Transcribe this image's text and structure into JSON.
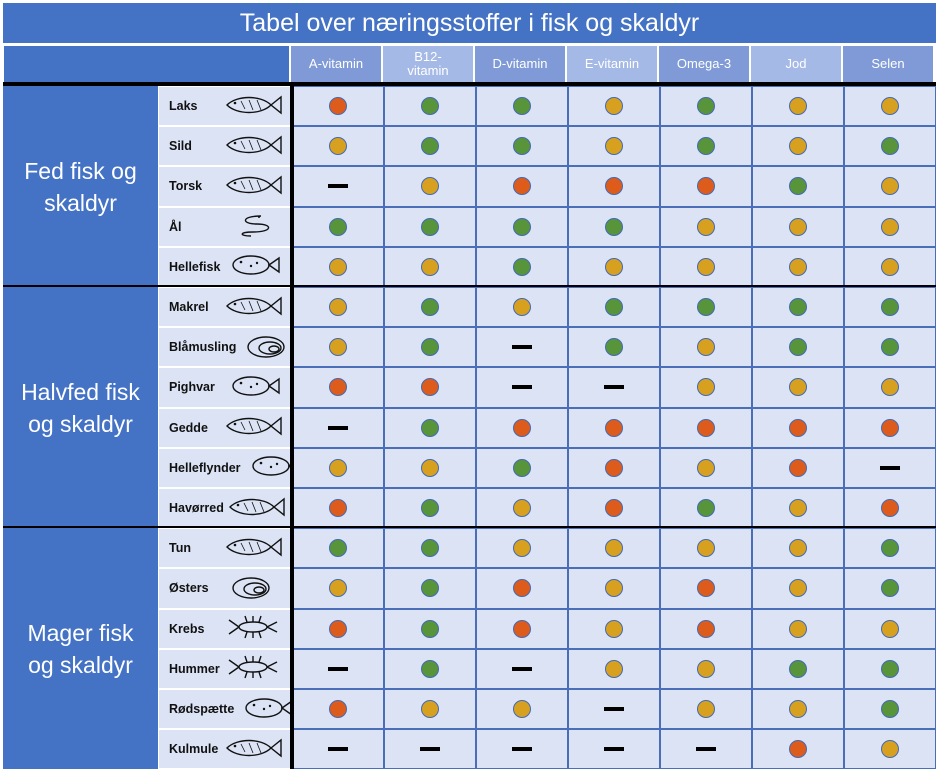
{
  "title": "Tabel over næringsstoffer i fisk og skaldyr",
  "columns": [
    "A-vitamin",
    "B12-\nvitamin",
    "D-vitamin",
    "E-vitamin",
    "Omega-3",
    "Jod",
    "Selen"
  ],
  "colors": {
    "green": "#57943a",
    "yellow": "#d7a11f",
    "orange": "#de5c1b",
    "header": "#4472c4"
  },
  "groups": [
    {
      "label": "Fed fisk og\nskaldyr",
      "rows": [
        {
          "name": "Laks",
          "icon": "salmon-icon",
          "values": [
            "orange",
            "green",
            "green",
            "yellow",
            "green",
            "yellow",
            "yellow"
          ]
        },
        {
          "name": "Sild",
          "icon": "herring-icon",
          "values": [
            "yellow",
            "green",
            "green",
            "yellow",
            "green",
            "yellow",
            "green"
          ]
        },
        {
          "name": "Torsk",
          "icon": "cod-icon",
          "values": [
            "none",
            "yellow",
            "orange",
            "orange",
            "orange",
            "green",
            "yellow"
          ]
        },
        {
          "name": "Ål",
          "icon": "eel-icon",
          "values": [
            "green",
            "green",
            "green",
            "green",
            "yellow",
            "yellow",
            "yellow"
          ]
        },
        {
          "name": "Hellefisk",
          "icon": "flatfish-icon",
          "values": [
            "yellow",
            "yellow",
            "green",
            "yellow",
            "yellow",
            "yellow",
            "yellow"
          ]
        }
      ]
    },
    {
      "label": "Halvfed fisk\nog skaldyr",
      "rows": [
        {
          "name": "Makrel",
          "icon": "mackerel-icon",
          "values": [
            "yellow",
            "green",
            "yellow",
            "green",
            "green",
            "green",
            "green"
          ]
        },
        {
          "name": "Blåmusling",
          "icon": "mussel-icon",
          "values": [
            "yellow",
            "green",
            "none",
            "green",
            "yellow",
            "green",
            "green"
          ]
        },
        {
          "name": "Pighvar",
          "icon": "turbot-icon",
          "values": [
            "orange",
            "orange",
            "none",
            "none",
            "yellow",
            "yellow",
            "yellow"
          ]
        },
        {
          "name": "Gedde",
          "icon": "pike-icon",
          "values": [
            "none",
            "green",
            "orange",
            "orange",
            "orange",
            "orange",
            "orange"
          ]
        },
        {
          "name": "Helleflynder",
          "icon": "halibut-icon",
          "values": [
            "yellow",
            "yellow",
            "green",
            "orange",
            "yellow",
            "orange",
            "none"
          ]
        },
        {
          "name": "Havørred",
          "icon": "trout-icon",
          "values": [
            "orange",
            "green",
            "yellow",
            "orange",
            "green",
            "yellow",
            "orange"
          ]
        }
      ]
    },
    {
      "label": "Mager fisk\nog skaldyr",
      "rows": [
        {
          "name": "Tun",
          "icon": "tuna-icon",
          "values": [
            "green",
            "green",
            "yellow",
            "yellow",
            "yellow",
            "yellow",
            "green"
          ]
        },
        {
          "name": "Østers",
          "icon": "oyster-icon",
          "values": [
            "yellow",
            "green",
            "orange",
            "yellow",
            "orange",
            "yellow",
            "green"
          ]
        },
        {
          "name": "Krebs",
          "icon": "crayfish-icon",
          "values": [
            "orange",
            "green",
            "orange",
            "yellow",
            "orange",
            "yellow",
            "yellow"
          ]
        },
        {
          "name": "Hummer",
          "icon": "lobster-icon",
          "values": [
            "none",
            "green",
            "none",
            "yellow",
            "yellow",
            "green",
            "green"
          ]
        },
        {
          "name": "Rødspætte",
          "icon": "plaice-icon",
          "values": [
            "orange",
            "yellow",
            "yellow",
            "none",
            "yellow",
            "yellow",
            "green"
          ]
        },
        {
          "name": "Kulmule",
          "icon": "hake-icon",
          "values": [
            "none",
            "none",
            "none",
            "none",
            "none",
            "orange",
            "yellow"
          ]
        }
      ]
    }
  ]
}
